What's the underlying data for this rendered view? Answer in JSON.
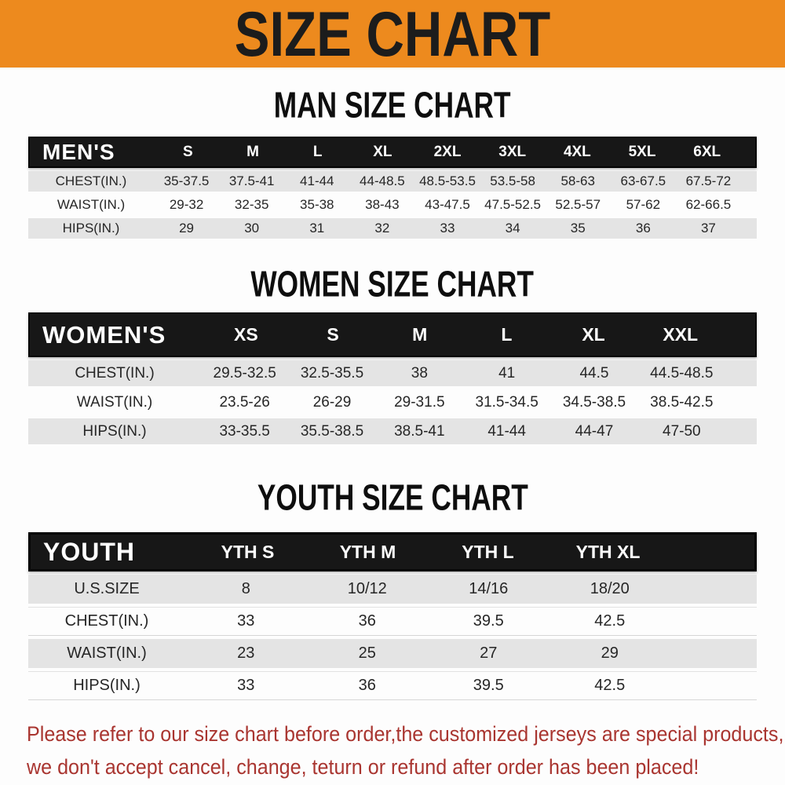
{
  "banner": {
    "title": "SIZE CHART"
  },
  "colors": {
    "banner_bg": "#ED8A1E",
    "header_bar_bg": "#171717",
    "row_alt_bg": "#E4E4E4",
    "disclaimer_red": "#A93530"
  },
  "man": {
    "heading": "MAN SIZE CHART",
    "header": {
      "label": "MEN'S",
      "sizes": [
        "S",
        "M",
        "L",
        "XL",
        "2XL",
        "3XL",
        "4XL",
        "5XL",
        "6XL"
      ]
    },
    "rows": [
      {
        "label": "CHEST(IN.)",
        "values": [
          "35-37.5",
          "37.5-41",
          "41-44",
          "44-48.5",
          "48.5-53.5",
          "53.5-58",
          "58-63",
          "63-67.5",
          "67.5-72"
        ]
      },
      {
        "label": "WAIST(IN.)",
        "values": [
          "29-32",
          "32-35",
          "35-38",
          "38-43",
          "43-47.5",
          "47.5-52.5",
          "52.5-57",
          "57-62",
          "62-66.5"
        ]
      },
      {
        "label": "HIPS(IN.)",
        "values": [
          "29",
          "30",
          "31",
          "32",
          "33",
          "34",
          "35",
          "36",
          "37"
        ]
      }
    ]
  },
  "women": {
    "heading": "WOMEN SIZE CHART",
    "header": {
      "label": "WOMEN'S",
      "sizes": [
        "XS",
        "S",
        "M",
        "L",
        "XL",
        "XXL"
      ]
    },
    "rows": [
      {
        "label": "CHEST(IN.)",
        "values": [
          "29.5-32.5",
          "32.5-35.5",
          "38",
          "41",
          "44.5",
          "44.5-48.5"
        ]
      },
      {
        "label": "WAIST(IN.)",
        "values": [
          "23.5-26",
          "26-29",
          "29-31.5",
          "31.5-34.5",
          "34.5-38.5",
          "38.5-42.5"
        ]
      },
      {
        "label": "HIPS(IN.)",
        "values": [
          "33-35.5",
          "35.5-38.5",
          "38.5-41",
          "41-44",
          "44-47",
          "47-50"
        ]
      }
    ]
  },
  "youth": {
    "heading": "YOUTH SIZE CHART",
    "header": {
      "label": "YOUTH",
      "sizes": [
        "YTH S",
        "YTH M",
        "YTH L",
        "YTH XL"
      ]
    },
    "rows": [
      {
        "label": "U.S.SIZE",
        "values": [
          "8",
          "10/12",
          "14/16",
          "18/20"
        ]
      },
      {
        "label": "CHEST(IN.)",
        "values": [
          "33",
          "36",
          "39.5",
          "42.5"
        ]
      },
      {
        "label": "WAIST(IN.)",
        "values": [
          "23",
          "25",
          "27",
          "29"
        ]
      },
      {
        "label": "HIPS(IN.)",
        "values": [
          "33",
          "36",
          "39.5",
          "42.5"
        ]
      }
    ]
  },
  "disclaimer": {
    "line1": "Please refer to our size chart before order,the customized jerseys are special products,",
    "line2": "we don't accept cancel, change, teturn or refund after order has been placed!"
  }
}
